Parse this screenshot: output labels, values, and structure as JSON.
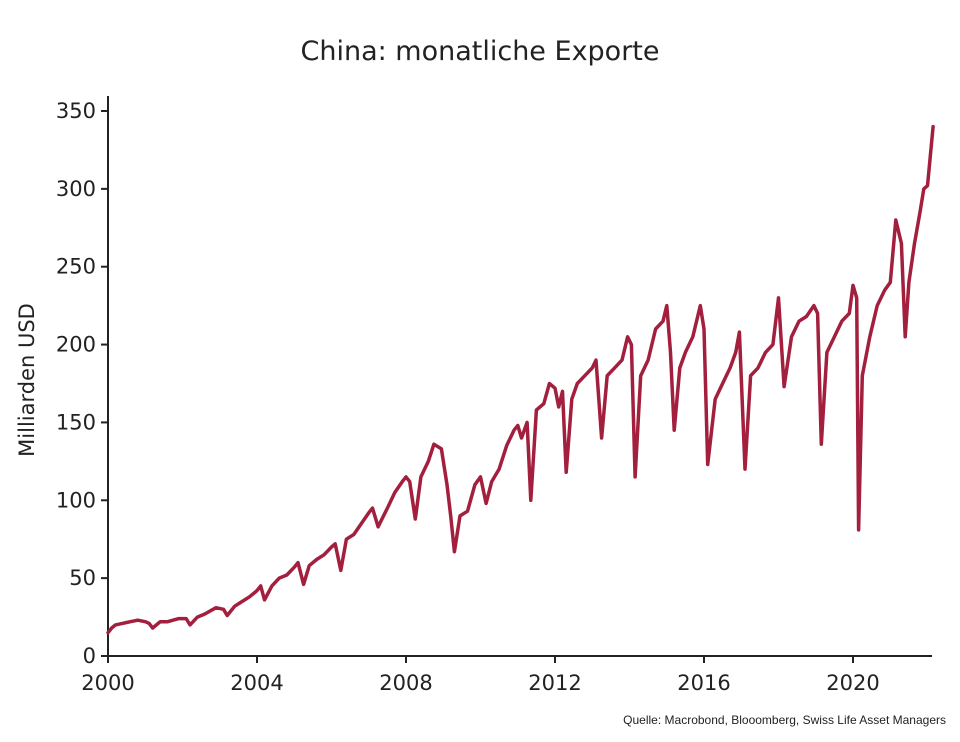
{
  "chart_data": {
    "type": "line",
    "title": "China: monatliche Exporte",
    "xlabel": "",
    "ylabel": "Milliarden USD",
    "source": "Quelle: Macrobond, Blooomberg, Swiss Life Asset Managers",
    "xlim": [
      2000,
      2022
    ],
    "ylim": [
      0,
      360
    ],
    "x_ticks": [
      2000,
      2004,
      2008,
      2012,
      2016,
      2020
    ],
    "y_ticks": [
      0,
      50,
      100,
      150,
      200,
      250,
      300,
      350
    ],
    "series_color": "#a31f3e",
    "series": [
      {
        "name": "Exporte",
        "points": [
          [
            2000.0,
            15
          ],
          [
            2000.1,
            18
          ],
          [
            2000.2,
            20
          ],
          [
            2000.4,
            21
          ],
          [
            2000.6,
            22
          ],
          [
            2000.8,
            23
          ],
          [
            2001.0,
            22
          ],
          [
            2001.1,
            21
          ],
          [
            2001.2,
            18
          ],
          [
            2001.4,
            22
          ],
          [
            2001.6,
            22
          ],
          [
            2001.9,
            24
          ],
          [
            2002.1,
            24
          ],
          [
            2002.2,
            20
          ],
          [
            2002.4,
            25
          ],
          [
            2002.6,
            27
          ],
          [
            2002.9,
            31
          ],
          [
            2003.1,
            30
          ],
          [
            2003.2,
            26
          ],
          [
            2003.4,
            32
          ],
          [
            2003.6,
            35
          ],
          [
            2003.8,
            38
          ],
          [
            2004.0,
            42
          ],
          [
            2004.1,
            45
          ],
          [
            2004.2,
            36
          ],
          [
            2004.4,
            45
          ],
          [
            2004.6,
            50
          ],
          [
            2004.8,
            52
          ],
          [
            2005.0,
            57
          ],
          [
            2005.1,
            60
          ],
          [
            2005.25,
            46
          ],
          [
            2005.4,
            58
          ],
          [
            2005.6,
            62
          ],
          [
            2005.8,
            65
          ],
          [
            2006.0,
            70
          ],
          [
            2006.1,
            72
          ],
          [
            2006.25,
            55
          ],
          [
            2006.4,
            75
          ],
          [
            2006.6,
            78
          ],
          [
            2006.8,
            85
          ],
          [
            2007.0,
            92
          ],
          [
            2007.1,
            95
          ],
          [
            2007.25,
            83
          ],
          [
            2007.5,
            95
          ],
          [
            2007.7,
            105
          ],
          [
            2007.9,
            112
          ],
          [
            2008.0,
            115
          ],
          [
            2008.1,
            112
          ],
          [
            2008.25,
            88
          ],
          [
            2008.4,
            115
          ],
          [
            2008.6,
            125
          ],
          [
            2008.75,
            136
          ],
          [
            2008.95,
            133
          ],
          [
            2009.1,
            110
          ],
          [
            2009.2,
            90
          ],
          [
            2009.3,
            67
          ],
          [
            2009.45,
            90
          ],
          [
            2009.65,
            93
          ],
          [
            2009.85,
            110
          ],
          [
            2010.0,
            115
          ],
          [
            2010.15,
            98
          ],
          [
            2010.3,
            112
          ],
          [
            2010.5,
            120
          ],
          [
            2010.7,
            135
          ],
          [
            2010.9,
            145
          ],
          [
            2011.0,
            148
          ],
          [
            2011.1,
            140
          ],
          [
            2011.25,
            150
          ],
          [
            2011.35,
            100
          ],
          [
            2011.5,
            158
          ],
          [
            2011.7,
            162
          ],
          [
            2011.85,
            175
          ],
          [
            2012.0,
            172
          ],
          [
            2012.1,
            160
          ],
          [
            2012.2,
            170
          ],
          [
            2012.3,
            118
          ],
          [
            2012.45,
            165
          ],
          [
            2012.6,
            175
          ],
          [
            2012.8,
            180
          ],
          [
            2013.0,
            185
          ],
          [
            2013.1,
            190
          ],
          [
            2013.25,
            140
          ],
          [
            2013.4,
            180
          ],
          [
            2013.6,
            185
          ],
          [
            2013.8,
            190
          ],
          [
            2013.95,
            205
          ],
          [
            2014.05,
            200
          ],
          [
            2014.15,
            115
          ],
          [
            2014.3,
            180
          ],
          [
            2014.5,
            190
          ],
          [
            2014.7,
            210
          ],
          [
            2014.9,
            215
          ],
          [
            2015.0,
            225
          ],
          [
            2015.1,
            195
          ],
          [
            2015.2,
            145
          ],
          [
            2015.35,
            185
          ],
          [
            2015.5,
            195
          ],
          [
            2015.7,
            205
          ],
          [
            2015.9,
            225
          ],
          [
            2016.0,
            210
          ],
          [
            2016.1,
            123
          ],
          [
            2016.3,
            165
          ],
          [
            2016.5,
            175
          ],
          [
            2016.7,
            185
          ],
          [
            2016.85,
            195
          ],
          [
            2016.95,
            208
          ],
          [
            2017.1,
            120
          ],
          [
            2017.25,
            180
          ],
          [
            2017.45,
            185
          ],
          [
            2017.65,
            195
          ],
          [
            2017.85,
            200
          ],
          [
            2018.0,
            230
          ],
          [
            2018.15,
            173
          ],
          [
            2018.35,
            205
          ],
          [
            2018.55,
            215
          ],
          [
            2018.75,
            218
          ],
          [
            2018.95,
            225
          ],
          [
            2019.05,
            220
          ],
          [
            2019.15,
            136
          ],
          [
            2019.3,
            195
          ],
          [
            2019.5,
            205
          ],
          [
            2019.7,
            215
          ],
          [
            2019.9,
            220
          ],
          [
            2020.0,
            238
          ],
          [
            2020.1,
            230
          ],
          [
            2020.15,
            81
          ],
          [
            2020.25,
            180
          ],
          [
            2020.45,
            205
          ],
          [
            2020.65,
            225
          ],
          [
            2020.85,
            235
          ],
          [
            2021.0,
            240
          ],
          [
            2021.15,
            280
          ],
          [
            2021.3,
            265
          ],
          [
            2021.4,
            205
          ],
          [
            2021.5,
            240
          ],
          [
            2021.65,
            265
          ],
          [
            2021.8,
            285
          ],
          [
            2021.9,
            300
          ],
          [
            2022.0,
            302
          ],
          [
            2022.15,
            340
          ]
        ]
      }
    ]
  }
}
